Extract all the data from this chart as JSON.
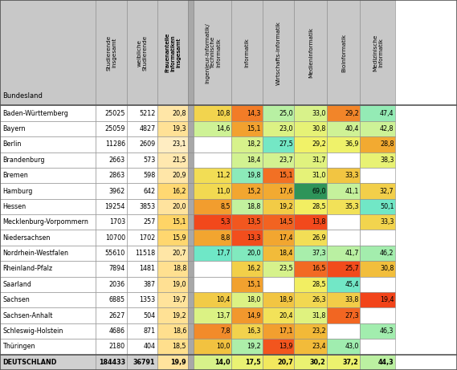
{
  "bundeslaender": [
    "Baden-Württemberg",
    "Bayern",
    "Berlin",
    "Brandenburg",
    "Bremen",
    "Hamburg",
    "Hessen",
    "Mecklenburg-Vorpommern",
    "Niedersachsen",
    "Nordrhein-Westfalen",
    "Rheinland-Pfalz",
    "Saarland",
    "Sachsen",
    "Sachsen-Anhalt",
    "Schleswig-Holstein",
    "Thüringen",
    "DEUTSCHLAND"
  ],
  "studierende": [
    25025,
    25059,
    11286,
    2663,
    2863,
    3962,
    19254,
    1703,
    10700,
    55610,
    7894,
    2036,
    6885,
    2627,
    4686,
    2180,
    184433
  ],
  "weibliche": [
    5212,
    4827,
    2609,
    573,
    598,
    642,
    3853,
    257,
    1702,
    11518,
    1481,
    387,
    1353,
    504,
    871,
    404,
    36791
  ],
  "frauenanteile": [
    20.8,
    19.3,
    23.1,
    21.5,
    20.9,
    16.2,
    20.0,
    15.1,
    15.9,
    20.7,
    18.8,
    19.0,
    19.7,
    19.2,
    18.6,
    18.5,
    19.9
  ],
  "ingenieur": [
    10.8,
    14.6,
    null,
    null,
    11.2,
    11.0,
    8.5,
    5.3,
    8.8,
    17.7,
    null,
    null,
    10.4,
    13.7,
    7.8,
    10.0,
    14.0
  ],
  "informatik": [
    14.3,
    15.1,
    18.2,
    18.4,
    19.8,
    15.2,
    18.8,
    13.5,
    13.3,
    20.0,
    16.2,
    15.1,
    18.0,
    14.9,
    16.3,
    19.2,
    17.5
  ],
  "wirtschaft": [
    25.0,
    23.0,
    27.5,
    23.7,
    15.1,
    17.6,
    19.2,
    14.5,
    17.4,
    18.4,
    23.5,
    null,
    18.9,
    20.4,
    17.1,
    13.9,
    20.7
  ],
  "medien": [
    33.0,
    30.8,
    29.2,
    31.7,
    31.0,
    69.0,
    28.5,
    13.8,
    26.9,
    37.3,
    16.5,
    28.5,
    26.3,
    31.8,
    23.2,
    23.4,
    30.2
  ],
  "bio": [
    29.2,
    40.4,
    36.9,
    null,
    33.3,
    41.1,
    35.3,
    null,
    null,
    41.7,
    25.7,
    45.4,
    33.8,
    27.3,
    null,
    43.0,
    37.2
  ],
  "medizin": [
    47.4,
    42.8,
    28.8,
    38.3,
    null,
    32.7,
    50.1,
    33.3,
    null,
    46.2,
    30.8,
    null,
    19.4,
    null,
    46.3,
    null,
    44.3
  ],
  "header_bg": "#c8c8c8",
  "sep_col_bg": "#a8a8a8",
  "last_row_bg": "#d0d0d0",
  "frauenanteile_header_underline_color": "#cc0000",
  "col_header_texts": [
    "Studierende\ninsgesamt",
    "weibliche\nStudierende",
    "Frauenanteile\nInformatiken\ninsgesamt",
    "",
    "Ingenieur-informatik/\nTechnische\nInformatik",
    "Informatik",
    "Wirtschafts-informatik",
    "Medieninformatik",
    "Bioinformatik",
    "Medizinische\nInformatik"
  ],
  "bundesland_header": "Bundesland"
}
